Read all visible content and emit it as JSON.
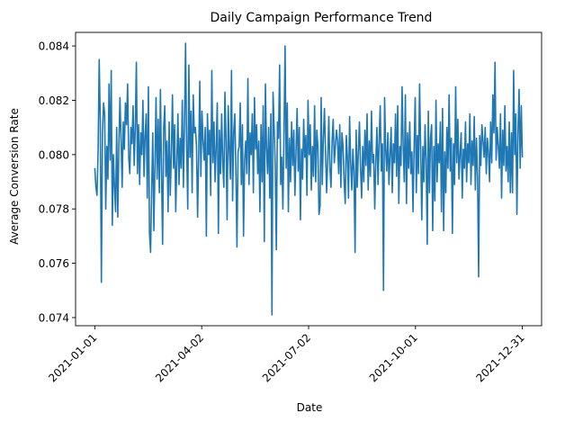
{
  "chart_data": {
    "type": "line",
    "title": "Daily Campaign Performance Trend",
    "xlabel": "Date",
    "ylabel": "Average Conversion Rate",
    "x_start": "2021-01-01",
    "x_end": "2021-12-31",
    "xlim": [
      "2021-01-01",
      "2021-12-31"
    ],
    "ylim": [
      0.0737,
      0.0845
    ],
    "x_tick_labels": [
      "2021-01-01",
      "2021-04-02",
      "2021-07-02",
      "2021-10-01",
      "2021-12-31"
    ],
    "y_ticks": [
      0.074,
      0.076,
      0.078,
      0.08,
      0.082,
      0.084
    ],
    "y_tick_labels": [
      "0.074",
      "0.076",
      "0.078",
      "0.080",
      "0.082",
      "0.084"
    ],
    "grid": false,
    "legend": "none",
    "series": [
      {
        "color": "#1f77b4",
        "values": [
          0.0795,
          0.0788,
          0.0785,
          0.0801,
          0.0835,
          0.0812,
          0.0753,
          0.0808,
          0.0819,
          0.0815,
          0.078,
          0.0803,
          0.0791,
          0.0826,
          0.0798,
          0.0831,
          0.0774,
          0.08,
          0.0788,
          0.0779,
          0.081,
          0.0777,
          0.0803,
          0.0821,
          0.0806,
          0.0788,
          0.0812,
          0.0802,
          0.0819,
          0.0811,
          0.0826,
          0.0799,
          0.0793,
          0.081,
          0.0804,
          0.0818,
          0.0796,
          0.081,
          0.0834,
          0.0793,
          0.0811,
          0.0789,
          0.0808,
          0.08,
          0.082,
          0.0792,
          0.0807,
          0.0815,
          0.0784,
          0.0825,
          0.0771,
          0.0764,
          0.0787,
          0.0808,
          0.0772,
          0.0796,
          0.0821,
          0.0791,
          0.0813,
          0.0786,
          0.0824,
          0.0794,
          0.0767,
          0.081,
          0.0818,
          0.0792,
          0.0805,
          0.0779,
          0.0812,
          0.0785,
          0.08,
          0.0822,
          0.0795,
          0.0811,
          0.0779,
          0.0797,
          0.0815,
          0.0789,
          0.0806,
          0.0795,
          0.082,
          0.0788,
          0.0811,
          0.0841,
          0.0803,
          0.078,
          0.0833,
          0.0799,
          0.0816,
          0.0786,
          0.0822,
          0.0808,
          0.081,
          0.0803,
          0.0777,
          0.08,
          0.0827,
          0.0792,
          0.0816,
          0.0805,
          0.0798,
          0.081,
          0.077,
          0.0815,
          0.08,
          0.0809,
          0.0785,
          0.0831,
          0.0797,
          0.0812,
          0.079,
          0.0803,
          0.0819,
          0.0771,
          0.0809,
          0.0793,
          0.0815,
          0.0797,
          0.0788,
          0.0823,
          0.0805,
          0.0776,
          0.0818,
          0.0802,
          0.0791,
          0.0831,
          0.0783,
          0.0808,
          0.0815,
          0.0795,
          0.0766,
          0.0801,
          0.0803,
          0.0819,
          0.0789,
          0.0811,
          0.077,
          0.0798,
          0.0805,
          0.0793,
          0.0828,
          0.0789,
          0.0808,
          0.08,
          0.0815,
          0.0786,
          0.0821,
          0.0802,
          0.0811,
          0.0793,
          0.0805,
          0.0779,
          0.0811,
          0.079,
          0.0818,
          0.0768,
          0.0826,
          0.0803,
          0.0793,
          0.081,
          0.0784,
          0.0815,
          0.0741,
          0.0823,
          0.081,
          0.0796,
          0.0765,
          0.0812,
          0.0806,
          0.0833,
          0.0789,
          0.0799,
          0.078,
          0.0807,
          0.084,
          0.0795,
          0.0819,
          0.0779,
          0.0806,
          0.079,
          0.0812,
          0.0796,
          0.0809,
          0.0785,
          0.0801,
          0.0817,
          0.0794,
          0.081,
          0.0776,
          0.0802,
          0.0791,
          0.0813,
          0.0799,
          0.0807,
          0.0785,
          0.082,
          0.08,
          0.0811,
          0.0787,
          0.0803,
          0.0792,
          0.0818,
          0.079,
          0.0809,
          0.0803,
          0.0778,
          0.0781,
          0.0821,
          0.0789,
          0.0806,
          0.0817,
          0.0801,
          0.0786,
          0.0798,
          0.0814,
          0.0795,
          0.0788,
          0.0805,
          0.0813,
          0.0797,
          0.0803,
          0.0809,
          0.0805,
          0.0793,
          0.0811,
          0.0788,
          0.0808,
          0.0803,
          0.079,
          0.0782,
          0.0807,
          0.0799,
          0.0784,
          0.0814,
          0.0797,
          0.0787,
          0.0802,
          0.0794,
          0.0764,
          0.0809,
          0.0788,
          0.0801,
          0.0812,
          0.0795,
          0.0784,
          0.0803,
          0.079,
          0.0809,
          0.0796,
          0.0815,
          0.0787,
          0.0805,
          0.0792,
          0.0816,
          0.0797,
          0.08,
          0.078,
          0.0798,
          0.081,
          0.0789,
          0.0805,
          0.0818,
          0.0794,
          0.0804,
          0.075,
          0.0821,
          0.0802,
          0.0794,
          0.0808,
          0.0789,
          0.08,
          0.081,
          0.0786,
          0.0804,
          0.0797,
          0.0815,
          0.0792,
          0.0818,
          0.0782,
          0.0803,
          0.0796,
          0.0825,
          0.0803,
          0.079,
          0.0822,
          0.0782,
          0.0808,
          0.0795,
          0.0812,
          0.0793,
          0.0801,
          0.0779,
          0.0803,
          0.0821,
          0.0786,
          0.0807,
          0.0793,
          0.0826,
          0.0802,
          0.0776,
          0.0803,
          0.079,
          0.0811,
          0.0798,
          0.0767,
          0.0816,
          0.0786,
          0.0806,
          0.0811,
          0.0772,
          0.0803,
          0.0783,
          0.082,
          0.079,
          0.0804,
          0.0797,
          0.0812,
          0.0779,
          0.0817,
          0.0772,
          0.0801,
          0.0786,
          0.081,
          0.0795,
          0.0822,
          0.0794,
          0.0806,
          0.0771,
          0.0804,
          0.0789,
          0.0825,
          0.0797,
          0.0813,
          0.0791,
          0.08,
          0.0808,
          0.0784,
          0.0802,
          0.0795,
          0.0812,
          0.079,
          0.0804,
          0.0797,
          0.0815,
          0.0789,
          0.0805,
          0.0796,
          0.0814,
          0.0787,
          0.0806,
          0.0792,
          0.0755,
          0.0807,
          0.0796,
          0.0811,
          0.0805,
          0.0799,
          0.081,
          0.0793,
          0.0806,
          0.0801,
          0.079,
          0.0812,
          0.0797,
          0.0822,
          0.0808,
          0.0834,
          0.0798,
          0.081,
          0.0803,
          0.0795,
          0.0815,
          0.0784,
          0.0809,
          0.0796,
          0.0818,
          0.0794,
          0.0803,
          0.079,
          0.0812,
          0.0786,
          0.0808,
          0.0786,
          0.0831,
          0.08,
          0.0815,
          0.0778,
          0.0808,
          0.0824,
          0.0795,
          0.0818,
          0.0799
        ]
      }
    ]
  }
}
